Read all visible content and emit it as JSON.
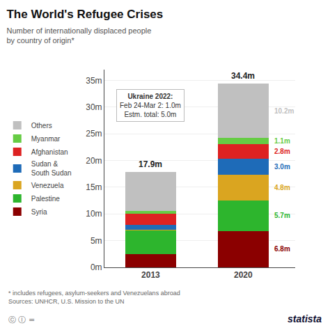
{
  "chart_data": {
    "type": "bar",
    "stacked": true,
    "title": "The World's Refugee Crises",
    "subtitle": "Number of internationally displaced people\nby country of origin*",
    "categories": [
      "2013",
      "2020"
    ],
    "series": [
      {
        "name": "Syria",
        "color": "#8B0000",
        "values": [
          2.5,
          6.8
        ],
        "value_labels": [
          null,
          "6.8m"
        ]
      },
      {
        "name": "Palestine",
        "color": "#2DB52D",
        "values": [
          4.5,
          5.7
        ],
        "value_labels": [
          null,
          "5.7m"
        ]
      },
      {
        "name": "Venezuela",
        "color": "#DAA520",
        "values": [
          0.1,
          4.8
        ],
        "value_labels": [
          null,
          "4.8m"
        ]
      },
      {
        "name": "Sudan &\nSouth Sudan",
        "color": "#1E6BB8",
        "values": [
          0.9,
          3.0
        ],
        "value_labels": [
          null,
          "3.0m"
        ]
      },
      {
        "name": "Afghanistan",
        "color": "#DD2222",
        "values": [
          2.0,
          2.8
        ],
        "value_labels": [
          null,
          "2.8m"
        ]
      },
      {
        "name": "Myanmar",
        "color": "#66CC44",
        "values": [
          0.5,
          1.1
        ],
        "value_labels": [
          null,
          "1.1m"
        ]
      },
      {
        "name": "Others",
        "color": "#C0C0C0",
        "values": [
          7.4,
          10.2
        ],
        "value_labels": [
          null,
          "10.2m"
        ]
      }
    ],
    "totals": [
      17.9,
      34.4
    ],
    "total_labels": [
      "17.9m",
      "34.4m"
    ],
    "data_labels": true,
    "ylim": [
      0,
      37
    ],
    "yticks": [
      {
        "value": 0,
        "label": "0m"
      },
      {
        "value": 5,
        "label": "5m"
      },
      {
        "value": 10,
        "label": "10m"
      },
      {
        "value": 15,
        "label": "15m"
      },
      {
        "value": 20,
        "label": "20m"
      },
      {
        "value": 25,
        "label": "25m"
      },
      {
        "value": 30,
        "label": "30m"
      },
      {
        "value": 35,
        "label": "35m"
      }
    ],
    "grid": true,
    "legend": "left",
    "annotations": [
      "Ukraine 2022:",
      "Feb 24-Mar 2: 1.0m",
      "Estm. total: 5.0m"
    ],
    "footnote": "* includes refugees, asylum-seekers and Venezuelans abroad\nSources: UNHCR, U.S. Mission to the UN",
    "credit": "statista",
    "license": "ⓒ Ⓘ ="
  }
}
